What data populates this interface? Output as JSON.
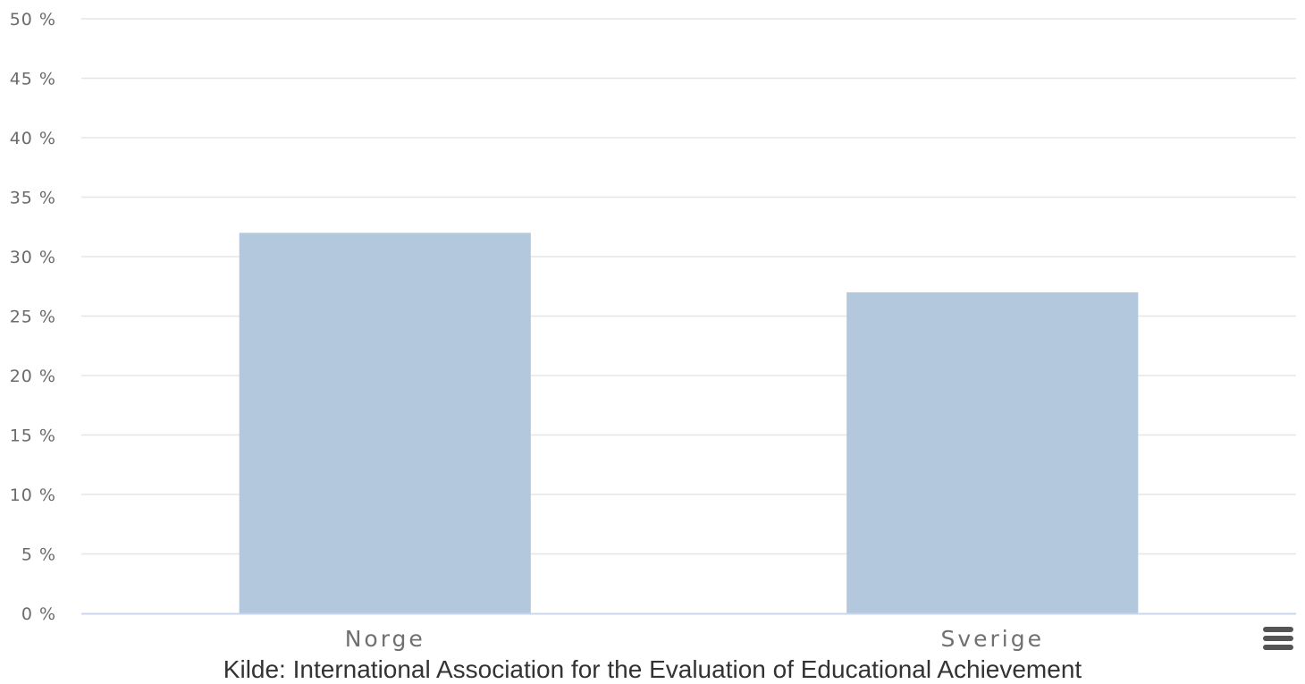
{
  "chart_data": {
    "type": "bar",
    "categories": [
      "Norge",
      "Sverige"
    ],
    "series": [
      {
        "values": [
          32,
          27
        ]
      }
    ],
    "y_ticks": [
      "0 %",
      "5 %",
      "10 %",
      "15 %",
      "20 %",
      "25 %",
      "30 %",
      "35 %",
      "40 %",
      "45 %",
      "50 %"
    ],
    "ylim": [
      0,
      50
    ],
    "grid": true,
    "bar_color": "#b3c8dd",
    "grid_color": "#e6e6e6",
    "axis_color": "#ccd6eb"
  },
  "source_text": "Kilde: International Association for the Evaluation of Educational Achievement",
  "menu": {
    "icon": "hamburger-menu-icon"
  }
}
